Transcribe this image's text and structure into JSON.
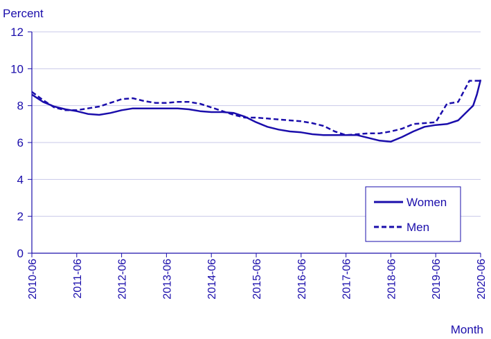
{
  "chart_data": {
    "type": "line",
    "title": "",
    "ylabel": "Percent",
    "xlabel": "Month",
    "ylim": [
      0,
      12
    ],
    "yticks": [
      0,
      2,
      4,
      6,
      8,
      10,
      12
    ],
    "grid": true,
    "legend_position": "bottom-right",
    "x_tick_labels": [
      "2010-06",
      "2011-06",
      "2012-06",
      "2013-06",
      "2014-06",
      "2015-06",
      "2016-06",
      "2017-06",
      "2018-06",
      "2019-06",
      "2020-06"
    ],
    "colors": {
      "line": "#1a0dab",
      "grid": "#c8c8e8",
      "axis": "#1a0dab"
    },
    "series": [
      {
        "name": "Women",
        "style": "solid",
        "x": [
          "2010-06",
          "2010-09",
          "2010-12",
          "2011-03",
          "2011-06",
          "2011-09",
          "2011-12",
          "2012-03",
          "2012-06",
          "2012-09",
          "2012-12",
          "2013-03",
          "2013-06",
          "2013-09",
          "2013-12",
          "2014-03",
          "2014-06",
          "2014-09",
          "2014-12",
          "2015-03",
          "2015-06",
          "2015-09",
          "2015-12",
          "2016-03",
          "2016-06",
          "2016-09",
          "2016-12",
          "2017-03",
          "2017-06",
          "2017-09",
          "2017-12",
          "2018-03",
          "2018-06",
          "2018-09",
          "2018-12",
          "2019-03",
          "2019-06",
          "2019-09",
          "2019-12",
          "2020-03",
          "2020-04",
          "2020-05",
          "2020-06"
        ],
        "values": [
          8.6,
          8.2,
          7.95,
          7.8,
          7.7,
          7.55,
          7.5,
          7.6,
          7.75,
          7.85,
          7.85,
          7.85,
          7.85,
          7.85,
          7.8,
          7.7,
          7.65,
          7.65,
          7.6,
          7.4,
          7.1,
          6.85,
          6.7,
          6.6,
          6.55,
          6.45,
          6.4,
          6.4,
          6.4,
          6.4,
          6.25,
          6.1,
          6.05,
          6.3,
          6.6,
          6.85,
          6.95,
          7.0,
          7.2,
          7.8,
          8.0,
          8.6,
          9.4
        ]
      },
      {
        "name": "Men",
        "style": "dashed",
        "x": [
          "2010-06",
          "2010-09",
          "2010-12",
          "2011-03",
          "2011-06",
          "2011-09",
          "2011-12",
          "2012-03",
          "2012-06",
          "2012-09",
          "2012-12",
          "2013-03",
          "2013-06",
          "2013-09",
          "2013-12",
          "2014-03",
          "2014-06",
          "2014-09",
          "2014-12",
          "2015-03",
          "2015-06",
          "2015-09",
          "2015-12",
          "2016-03",
          "2016-06",
          "2016-09",
          "2016-12",
          "2017-03",
          "2017-06",
          "2017-09",
          "2017-12",
          "2018-03",
          "2018-06",
          "2018-09",
          "2018-12",
          "2019-03",
          "2019-06",
          "2019-09",
          "2019-12",
          "2020-03",
          "2020-04",
          "2020-05",
          "2020-06"
        ],
        "values": [
          8.75,
          8.3,
          7.9,
          7.75,
          7.75,
          7.85,
          7.95,
          8.15,
          8.35,
          8.4,
          8.25,
          8.15,
          8.15,
          8.2,
          8.2,
          8.1,
          7.9,
          7.7,
          7.5,
          7.35,
          7.35,
          7.3,
          7.25,
          7.2,
          7.15,
          7.05,
          6.9,
          6.6,
          6.4,
          6.45,
          6.5,
          6.5,
          6.6,
          6.75,
          7.0,
          7.05,
          7.1,
          8.1,
          8.2,
          9.35,
          9.35,
          9.35,
          9.35
        ]
      }
    ]
  }
}
